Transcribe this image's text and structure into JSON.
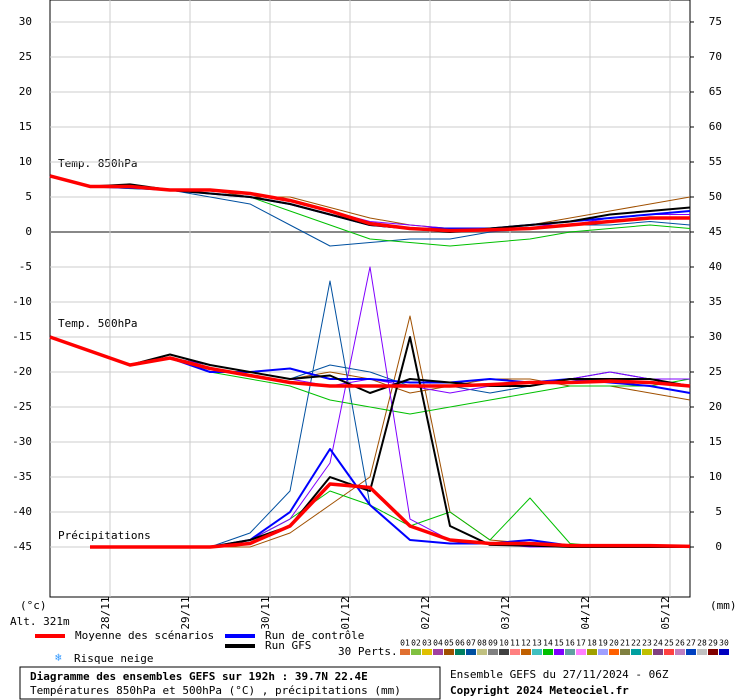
{
  "chart_data": {
    "type": "line",
    "title": "Diagramme des ensembles GEFS sur 192h : 39.7N 22.4E",
    "subtitle": "Températures 850hPa et 500hPa (°C) , précipitations (mm)",
    "run_label": "Ensemble GEFS du 27/11/2024 - 06Z",
    "copyright": "Copyright 2024 Meteociel.fr",
    "ylabel": "(°c)",
    "y2label": "(mm)",
    "altitude": "Alt. 321m",
    "curve_labels": {
      "t850": "Temp. 850hPa",
      "t500": "Temp. 500hPa",
      "precip": "Précipitations"
    },
    "x": [
      0,
      12,
      24,
      36,
      48,
      60,
      72,
      84,
      96,
      108,
      120,
      132,
      144,
      156,
      168,
      180,
      192
    ],
    "xlim": [
      0,
      192
    ],
    "xticks": [
      {
        "value": 18,
        "label": "28/11"
      },
      {
        "value": 42,
        "label": "29/11"
      },
      {
        "value": 66,
        "label": "30/11"
      },
      {
        "value": 90,
        "label": "01/12"
      },
      {
        "value": 114,
        "label": "02/12"
      },
      {
        "value": 138,
        "label": "03/12"
      },
      {
        "value": 162,
        "label": "04/12"
      },
      {
        "value": 186,
        "label": "05/12"
      }
    ],
    "ylim": [
      -52.14,
      33.14
    ],
    "yticks": [
      30,
      25,
      20,
      15,
      10,
      5,
      0,
      -5,
      -10,
      -15,
      -20,
      -25,
      -30,
      -35,
      -40,
      -45
    ],
    "y2lim": [
      -7.14,
      78.14
    ],
    "y2ticks": [
      75,
      70,
      65,
      60,
      55,
      50,
      45,
      40,
      35,
      30,
      25,
      20,
      15,
      10,
      5,
      0
    ],
    "grid": true,
    "series": [
      {
        "name": "Run de contrôle",
        "color": "#0000ff",
        "t850": [
          8,
          6.5,
          6.3,
          6,
          5.5,
          5,
          4,
          2.5,
          1,
          0.5,
          0.5,
          0.5,
          1,
          1.5,
          2,
          2.5,
          3
        ],
        "t500": [
          -15,
          -17,
          -19,
          -18,
          -20,
          -20,
          -19.5,
          -21,
          -21,
          -21.5,
          -21.5,
          -21,
          -21.5,
          -21,
          -21.5,
          -22,
          -23
        ],
        "precip": [
          null,
          0,
          0,
          0,
          0,
          1,
          5,
          14,
          6,
          1,
          0.5,
          0.5,
          1,
          0.2,
          0.2,
          0.2,
          0
        ]
      },
      {
        "name": "Run GFS",
        "color": "#000000",
        "t850": [
          8,
          6.5,
          6.8,
          6,
          5.5,
          5,
          4,
          2.5,
          1,
          0.5,
          0,
          0.5,
          1,
          1.5,
          2.5,
          3,
          3.5
        ],
        "t500": [
          -15,
          -17,
          -19,
          -17.5,
          -19,
          -20,
          -21,
          -20.5,
          -23,
          -21,
          -21.5,
          -22,
          -22,
          -21,
          -21,
          -21,
          -22
        ],
        "precip": [
          null,
          0,
          0,
          0,
          0,
          1,
          3,
          10,
          8,
          30,
          3,
          0.3,
          0.2,
          0,
          0,
          0,
          0
        ]
      },
      {
        "name": "Moyenne des scénarios",
        "color": "#ff0000",
        "t850": [
          8,
          6.5,
          6.5,
          6,
          6,
          5.5,
          4.5,
          3,
          1.2,
          0.5,
          0.2,
          0.3,
          0.5,
          1,
          1.5,
          2,
          2
        ],
        "t500": [
          -15,
          -17,
          -19,
          -18,
          -19.5,
          -20.5,
          -21.5,
          -22,
          -22,
          -22,
          -22,
          -21.8,
          -21.5,
          -21.5,
          -21.3,
          -21.5,
          -22
        ],
        "precip": [
          null,
          0,
          0,
          0,
          0,
          0.5,
          3,
          9,
          8.5,
          3,
          1,
          0.5,
          0.5,
          0.2,
          0.2,
          0.2,
          0.1
        ]
      }
    ],
    "members_label": "30 Perts.",
    "members": [
      {
        "name": "01",
        "color": "#e07030"
      },
      {
        "name": "02",
        "color": "#80c040"
      },
      {
        "name": "03",
        "color": "#e0c000"
      },
      {
        "name": "04",
        "color": "#a040a0"
      },
      {
        "name": "05",
        "color": "#a05000",
        "t850": [
          8,
          6.5,
          6.6,
          6,
          6,
          5,
          5,
          3.5,
          2,
          1,
          0.5,
          0.5,
          1,
          2,
          3,
          4,
          5
        ],
        "t500": [
          -15,
          -17,
          -19,
          -18,
          -19,
          -20,
          -21,
          -20,
          -21,
          -23,
          -22,
          -21,
          -21,
          -22,
          -22,
          -23,
          -24
        ],
        "precip": [
          null,
          0,
          0,
          0,
          0,
          0,
          2,
          6,
          10,
          33,
          5,
          1,
          0.5,
          0,
          0,
          0,
          0
        ]
      },
      {
        "name": "06",
        "color": "#008060"
      },
      {
        "name": "07",
        "color": "#0050a0",
        "t850": [
          8,
          6.5,
          6.4,
          6,
          5,
          4,
          1,
          -2,
          -1.5,
          -1,
          -1,
          0,
          0.5,
          1,
          1,
          1.5,
          1
        ],
        "t500": [
          -15,
          -17,
          -19,
          -18,
          -19,
          -20,
          -21,
          -19,
          -20,
          -22,
          -22,
          -23,
          -22,
          -21,
          -20,
          -21,
          -22
        ],
        "precip": [
          null,
          0,
          0,
          0,
          0,
          2,
          8,
          38,
          6,
          1,
          0.5,
          0.5,
          0.3,
          0,
          0,
          0,
          0
        ]
      },
      {
        "name": "08",
        "color": "#c0c080"
      },
      {
        "name": "09",
        "color": "#808080"
      },
      {
        "name": "10",
        "color": "#404040"
      },
      {
        "name": "11",
        "color": "#ff8080"
      },
      {
        "name": "12",
        "color": "#c06000"
      },
      {
        "name": "13",
        "color": "#40c0c0"
      },
      {
        "name": "14",
        "color": "#00c000",
        "t850": [
          8,
          6.5,
          6.2,
          6,
          5.5,
          5,
          3,
          1,
          -1,
          -1.5,
          -2,
          -1.5,
          -1,
          0,
          0.5,
          1,
          0.5
        ],
        "t500": [
          -15,
          -17,
          -19,
          -18,
          -20,
          -21,
          -22,
          -24,
          -25,
          -26,
          -25,
          -24,
          -23,
          -22,
          -22,
          -22,
          -21
        ],
        "precip": [
          null,
          0,
          0,
          0,
          0,
          1,
          4,
          8,
          6,
          3,
          5,
          1,
          7,
          0.5,
          0,
          0,
          0
        ]
      },
      {
        "name": "15",
        "color": "#8000ff",
        "t850": [
          8,
          6.5,
          6.5,
          6,
          6,
          5.5,
          4.5,
          3,
          1.5,
          1,
          0.5,
          0.5,
          1,
          1,
          2,
          2.5,
          2.5
        ],
        "t500": [
          -15,
          -17,
          -19,
          -18,
          -19,
          -20,
          -21,
          -22,
          -21,
          -22,
          -23,
          -22,
          -22,
          -21,
          -20,
          -21,
          -21
        ],
        "precip": [
          null,
          0,
          0,
          0,
          0,
          1,
          4,
          12,
          40,
          4,
          1,
          0.5,
          0,
          0,
          0,
          0,
          0
        ]
      },
      {
        "name": "16",
        "color": "#60a0a0"
      },
      {
        "name": "17",
        "color": "#ff80ff"
      },
      {
        "name": "18",
        "color": "#a0a000"
      },
      {
        "name": "19",
        "color": "#a0a0ff"
      },
      {
        "name": "20",
        "color": "#ff6000"
      },
      {
        "name": "21",
        "color": "#808040"
      },
      {
        "name": "22",
        "color": "#00a0a0"
      },
      {
        "name": "23",
        "color": "#c0c000"
      },
      {
        "name": "24",
        "color": "#804080"
      },
      {
        "name": "25",
        "color": "#ff4040"
      },
      {
        "name": "26",
        "color": "#c080c0"
      },
      {
        "name": "27",
        "color": "#0040c0"
      },
      {
        "name": "28",
        "color": "#c0c0c0"
      },
      {
        "name": "29",
        "color": "#800000"
      },
      {
        "name": "30",
        "color": "#0000c0"
      }
    ],
    "snow": {
      "icon": "❄",
      "label": "Risque neige"
    }
  }
}
